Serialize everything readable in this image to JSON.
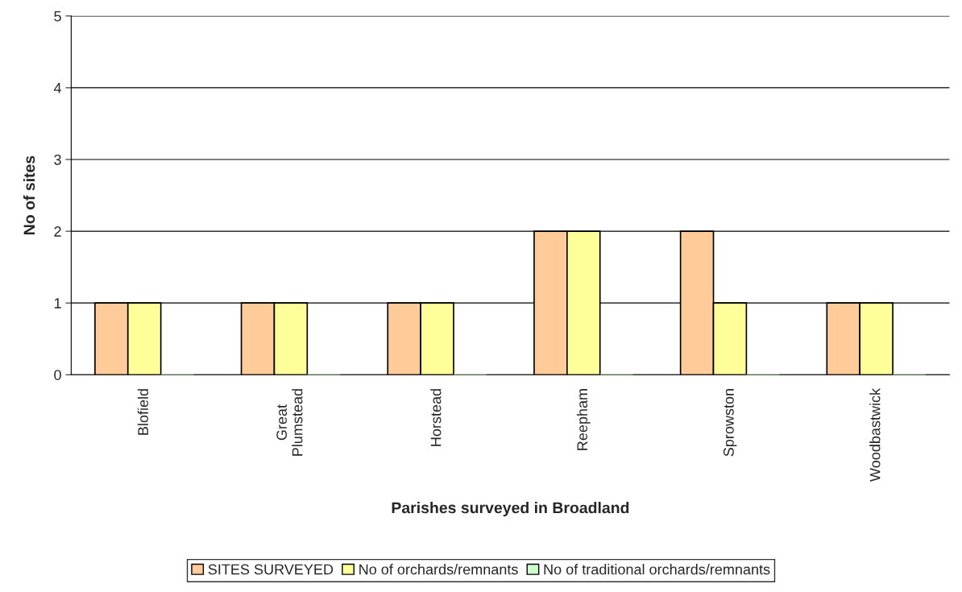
{
  "chart_data": {
    "type": "bar",
    "xlabel": "Parishes surveyed in Broadland",
    "ylabel": "No of sites",
    "categories": [
      "Blofield",
      "Great\nPlumstead",
      "Horstead",
      "Reepham",
      "Sprowston",
      "Woodbastwick"
    ],
    "series": [
      {
        "name": "SITES SURVEYED",
        "color": "#ffcc99",
        "values": [
          1,
          1,
          1,
          2,
          2,
          1
        ]
      },
      {
        "name": "No of orchards/remnants",
        "color": "#ffff99",
        "values": [
          1,
          1,
          1,
          2,
          1,
          1
        ]
      },
      {
        "name": "No of traditional orchards/remnants",
        "color": "#ccffcc",
        "values": [
          0,
          0,
          0,
          0,
          0,
          0
        ]
      }
    ],
    "ylim": [
      0,
      5
    ],
    "yticks": [
      0,
      1,
      2,
      3,
      4,
      5
    ],
    "grid": "y",
    "legend": "bottom"
  }
}
